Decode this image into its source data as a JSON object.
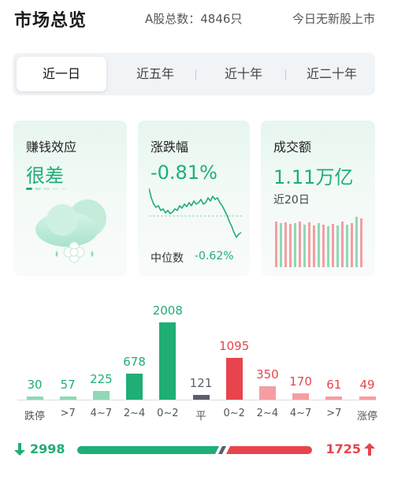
{
  "header": {
    "title": "市场总览",
    "stock_count": "A股总数：4846只",
    "ipo_text": "今日无新股上市"
  },
  "tabs": [
    {
      "label": "近一日",
      "active": true
    },
    {
      "label": "近五年",
      "active": false
    },
    {
      "label": "近十年",
      "active": false
    },
    {
      "label": "近二十年",
      "active": false
    }
  ],
  "cards": {
    "profit_effect": {
      "title": "赚钱效应",
      "value": "很差"
    },
    "change": {
      "title": "涨跌幅",
      "value": "-0.81%",
      "median_label": "中位数",
      "median_value": "-0.62%"
    },
    "turnover": {
      "title": "成交额",
      "value": "1.11万亿",
      "period": "近20日"
    }
  },
  "distribution": {
    "categories": [
      "跌停",
      ">7",
      "4~7",
      "2~4",
      "0~2",
      "平",
      "0~2",
      "2~4",
      "4~7",
      ">7",
      "涨停"
    ],
    "values": [
      "30",
      "57",
      "225",
      "678",
      "2008",
      "121",
      "1095",
      "350",
      "170",
      "61",
      "49"
    ],
    "direction": [
      "down",
      "down",
      "down",
      "down",
      "down",
      "flat",
      "up",
      "up",
      "up",
      "up",
      "up"
    ]
  },
  "summary": {
    "down_count": "2998",
    "up_count": "1725",
    "down_ratio": 0.635
  },
  "colors": {
    "up": "#e8444d",
    "up_light": "#f49ea1",
    "down": "#1fae74",
    "down_light": "#8fd8b5",
    "flat": "#5a5f6e"
  }
}
